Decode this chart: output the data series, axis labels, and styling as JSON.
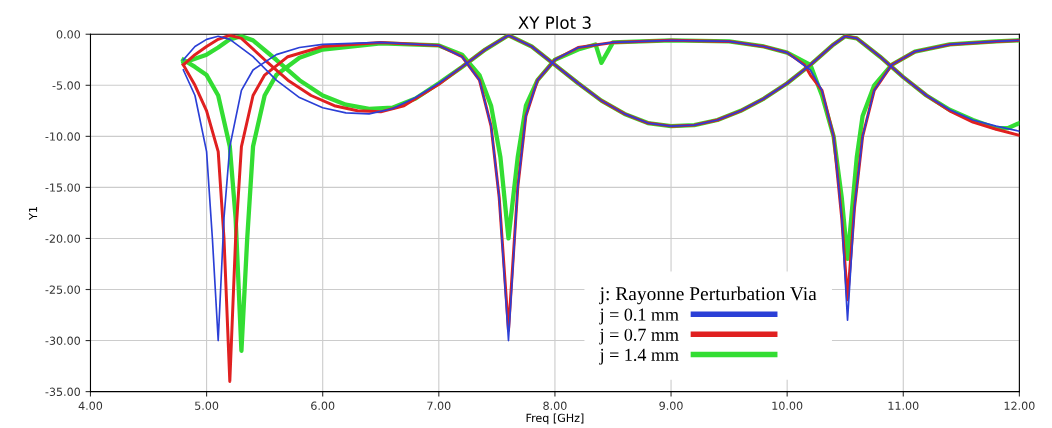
{
  "chart_data": {
    "type": "line",
    "title": "XY Plot 3",
    "xlabel": "Freq [GHz]",
    "ylabel": "Y1",
    "xlim": [
      4,
      12
    ],
    "xticks": [
      {
        "value": 4,
        "label": "4.00"
      },
      {
        "value": 5,
        "label": "5.00"
      },
      {
        "value": 6,
        "label": "6.00"
      },
      {
        "value": 7,
        "label": "7.00"
      },
      {
        "value": 8,
        "label": "8.00"
      },
      {
        "value": 9,
        "label": "9.00"
      },
      {
        "value": 10,
        "label": "10.00"
      },
      {
        "value": 11,
        "label": "11.00"
      },
      {
        "value": 12,
        "label": "12.00"
      }
    ],
    "ylim": [
      -35,
      0
    ],
    "yticks": [
      {
        "value": -35,
        "label": "-35.00"
      },
      {
        "value": -30,
        "label": "-30.00"
      },
      {
        "value": -25,
        "label": "-25.00"
      },
      {
        "value": -20,
        "label": "-20.00"
      },
      {
        "value": -15,
        "label": "-15.00"
      },
      {
        "value": -10,
        "label": "-10.00"
      },
      {
        "value": -5,
        "label": "-5.00"
      },
      {
        "value": 0,
        "label": "0.00"
      }
    ],
    "grid": true,
    "legend": "bottom",
    "legend_title": "j: Rayonne Perturbation Via",
    "line_style": "solid",
    "marker": "none",
    "series": [
      {
        "name": "j = 0.1 mm",
        "color": "#2b3fd6",
        "x": [
          4.8,
          4.9,
          5.0,
          5.05,
          5.1,
          5.15,
          5.2,
          5.3,
          5.4,
          5.6,
          5.8,
          6.0,
          6.5,
          7.0,
          7.2,
          7.35,
          7.45,
          7.52,
          7.6,
          7.68,
          7.75,
          7.85,
          8.0,
          8.2,
          8.5,
          9.0,
          9.5,
          9.8,
          10.0,
          10.2,
          10.3,
          10.4,
          10.47,
          10.52,
          10.58,
          10.65,
          10.75,
          10.9,
          11.1,
          11.4,
          11.8,
          12.0
        ],
        "values": [
          -3.5,
          -6,
          -11.5,
          -20,
          -30,
          -18,
          -11,
          -5.5,
          -3.5,
          -2,
          -1.3,
          -1.0,
          -0.8,
          -1.1,
          -2.2,
          -4.5,
          -9,
          -16,
          -30,
          -15,
          -8,
          -4.5,
          -2.5,
          -1.3,
          -0.8,
          -0.6,
          -0.7,
          -1.2,
          -1.8,
          -3.5,
          -5.5,
          -10,
          -18,
          -28,
          -17,
          -10,
          -5.5,
          -3,
          -1.7,
          -1,
          -0.7,
          -0.6
        ]
      },
      {
        "color": "#2b3fd6",
        "x": [
          4.8,
          4.9,
          5.0,
          5.1,
          5.2,
          5.4,
          5.6,
          5.8,
          6.0,
          6.2,
          6.4,
          6.6,
          6.8,
          7.0,
          7.2,
          7.4,
          7.6,
          7.8,
          8.0,
          8.2,
          8.4,
          8.6,
          8.8,
          9.0,
          9.2,
          9.4,
          9.6,
          9.8,
          10.0,
          10.2,
          10.4,
          10.5,
          10.6,
          10.8,
          11.0,
          11.2,
          11.4,
          11.6,
          11.8,
          12.0
        ],
        "values": [
          -2.5,
          -1.2,
          -0.5,
          -0.2,
          -0.5,
          -2.2,
          -4.5,
          -6.2,
          -7.2,
          -7.7,
          -7.8,
          -7.3,
          -6.2,
          -4.8,
          -3.2,
          -1.5,
          -0.1,
          -1.2,
          -3.0,
          -4.8,
          -6.5,
          -7.8,
          -8.7,
          -9.0,
          -8.9,
          -8.4,
          -7.5,
          -6.3,
          -4.8,
          -3.0,
          -1.0,
          -0.2,
          -0.4,
          -2.2,
          -4.2,
          -6.0,
          -7.4,
          -8.4,
          -9.0,
          -9.5
        ]
      },
      {
        "name": "j = 0.7 mm",
        "color": "#e02020",
        "x": [
          4.8,
          4.9,
          5.0,
          5.1,
          5.15,
          5.2,
          5.25,
          5.3,
          5.4,
          5.5,
          5.7,
          6.0,
          6.5,
          7.0,
          7.2,
          7.35,
          7.45,
          7.52,
          7.6,
          7.68,
          7.75,
          7.85,
          8.0,
          8.2,
          8.5,
          9.0,
          9.5,
          9.8,
          10.0,
          10.15,
          10.2,
          10.3,
          10.4,
          10.47,
          10.52,
          10.58,
          10.65,
          10.75,
          10.9,
          11.1,
          11.4,
          11.8,
          12.0
        ],
        "values": [
          -3,
          -5,
          -7.5,
          -11.5,
          -20,
          -34,
          -20,
          -11,
          -6,
          -4,
          -2.2,
          -1.2,
          -0.8,
          -1.1,
          -2.2,
          -4.5,
          -9,
          -16,
          -29,
          -15,
          -8,
          -4.5,
          -2.5,
          -1.3,
          -0.8,
          -0.6,
          -0.7,
          -1.2,
          -1.8,
          -3.0,
          -4.0,
          -5.5,
          -10,
          -18,
          -26,
          -17,
          -10,
          -5.5,
          -3,
          -1.7,
          -1,
          -0.7,
          -0.6
        ]
      },
      {
        "color": "#e02020",
        "x": [
          4.8,
          4.9,
          5.0,
          5.1,
          5.2,
          5.3,
          5.5,
          5.7,
          5.9,
          6.1,
          6.3,
          6.5,
          6.7,
          7.0,
          7.2,
          7.4,
          7.6,
          7.8,
          8.0,
          8.2,
          8.4,
          8.6,
          8.8,
          9.0,
          9.2,
          9.4,
          9.6,
          9.8,
          10.0,
          10.2,
          10.4,
          10.5,
          10.6,
          10.8,
          11.0,
          11.2,
          11.4,
          11.6,
          11.8,
          12.0
        ],
        "values": [
          -3,
          -2,
          -1.2,
          -0.5,
          -0.1,
          -0.4,
          -2.5,
          -4.5,
          -6,
          -7,
          -7.5,
          -7.6,
          -7.0,
          -4.9,
          -3.2,
          -1.5,
          -0.1,
          -1.2,
          -3.0,
          -4.8,
          -6.5,
          -7.8,
          -8.7,
          -9.0,
          -8.9,
          -8.4,
          -7.5,
          -6.3,
          -4.8,
          -3.0,
          -1.0,
          -0.2,
          -0.4,
          -2.2,
          -4.2,
          -6.0,
          -7.5,
          -8.6,
          -9.3,
          -9.9
        ]
      },
      {
        "name": "j = 1.4 mm",
        "color": "#33dd33",
        "x": [
          4.8,
          4.9,
          5.0,
          5.1,
          5.2,
          5.25,
          5.3,
          5.35,
          5.4,
          5.5,
          5.6,
          5.8,
          6.0,
          6.5,
          7.0,
          7.2,
          7.35,
          7.45,
          7.53,
          7.6,
          7.68,
          7.75,
          7.85,
          8.0,
          8.2,
          8.35,
          8.4,
          8.5,
          9.0,
          9.5,
          9.8,
          10.0,
          10.2,
          10.3,
          10.4,
          10.47,
          10.52,
          10.6,
          10.65,
          10.75,
          10.9,
          11.1,
          11.4,
          11.8,
          12.0
        ],
        "values": [
          -2.5,
          -3.2,
          -4,
          -6,
          -11,
          -18,
          -31,
          -20,
          -11,
          -6,
          -4,
          -2.3,
          -1.5,
          -0.9,
          -1.1,
          -2.0,
          -4.0,
          -7,
          -12,
          -20,
          -12,
          -7,
          -4.5,
          -2.5,
          -1.5,
          -1.0,
          -2.8,
          -0.8,
          -0.6,
          -0.7,
          -1.2,
          -1.8,
          -3.0,
          -6,
          -10,
          -16,
          -22,
          -12,
          -8,
          -5,
          -3,
          -1.7,
          -1,
          -0.7,
          -0.6
        ]
      },
      {
        "color": "#33dd33",
        "x": [
          4.8,
          5.0,
          5.1,
          5.2,
          5.3,
          5.4,
          5.6,
          5.8,
          6.0,
          6.2,
          6.4,
          6.6,
          6.8,
          7.0,
          7.2,
          7.4,
          7.6,
          7.8,
          8.0,
          8.2,
          8.4,
          8.6,
          8.8,
          9.0,
          9.2,
          9.4,
          9.6,
          9.8,
          10.0,
          10.2,
          10.4,
          10.5,
          10.6,
          10.8,
          11.0,
          11.2,
          11.4,
          11.6,
          11.8,
          11.9,
          12.0
        ],
        "values": [
          -2.8,
          -2,
          -1.3,
          -0.5,
          -0.2,
          -0.6,
          -2.5,
          -4.5,
          -6.0,
          -6.9,
          -7.3,
          -7.2,
          -6.3,
          -4.8,
          -3.2,
          -1.5,
          -0.1,
          -1.2,
          -3.0,
          -4.8,
          -6.5,
          -7.8,
          -8.7,
          -9.0,
          -8.9,
          -8.4,
          -7.5,
          -6.3,
          -4.8,
          -3.0,
          -1.0,
          -0.2,
          -0.4,
          -2.2,
          -4.2,
          -6.0,
          -7.4,
          -8.4,
          -9.2,
          -9.2,
          -8.7
        ]
      }
    ]
  }
}
